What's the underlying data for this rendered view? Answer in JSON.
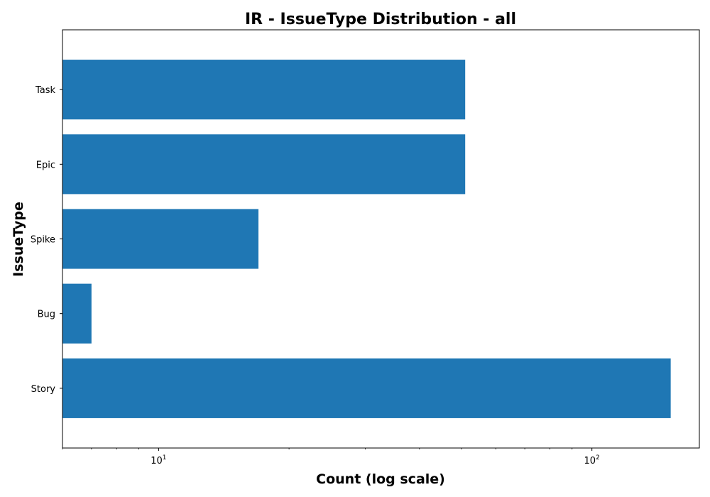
{
  "chart_data": {
    "type": "bar",
    "orientation": "horizontal",
    "title": "IR - IssueType Distribution - all",
    "xlabel": "Count (log scale)",
    "ylabel": "IssueType",
    "x_scale": "log",
    "xlim": [
      6,
      177
    ],
    "x_major_ticks": [
      {
        "value": 10,
        "base": "10",
        "exp": "1"
      },
      {
        "value": 100,
        "base": "10",
        "exp": "2"
      }
    ],
    "categories": [
      "Story",
      "Bug",
      "Spike",
      "Epic",
      "Task"
    ],
    "values": [
      152,
      7,
      17,
      51,
      51
    ],
    "bar_color": "#1f77b4",
    "grid": false,
    "legend": false
  }
}
